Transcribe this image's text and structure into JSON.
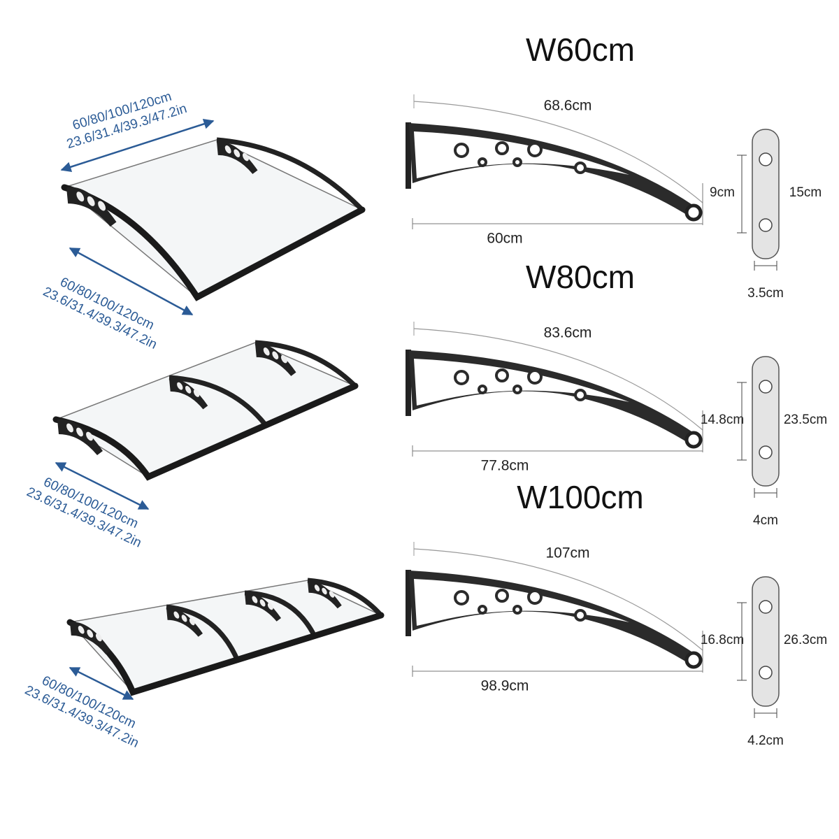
{
  "canopies": [
    {
      "dimensions": [
        {
          "cm": "60/80/100/120cm",
          "in": "23.6/31.4/39.3/47.2in"
        },
        {
          "cm": "60/80/100/120cm",
          "in": "23.6/31.4/39.3/47.2in"
        }
      ]
    },
    {
      "dimensions": [
        {
          "cm": "60/80/100/120cm",
          "in": "23.6/31.4/39.3/47.2in"
        }
      ]
    },
    {
      "dimensions": [
        {
          "cm": "60/80/100/120cm",
          "in": "23.6/31.4/39.3/47.2in"
        }
      ]
    }
  ],
  "brackets": [
    {
      "title": "W60cm",
      "arc": "68.6cm",
      "height": "9cm",
      "length": "60cm",
      "plate_height": "15cm",
      "plate_width": "3.5cm"
    },
    {
      "title": "W80cm",
      "arc": "83.6cm",
      "height": "14.8cm",
      "length": "77.8cm",
      "plate_height": "23.5cm",
      "plate_width": "4cm"
    },
    {
      "title": "W100cm",
      "arc": "107cm",
      "height": "16.8cm",
      "length": "98.9cm",
      "plate_height": "26.3cm",
      "plate_width": "4.2cm"
    }
  ]
}
